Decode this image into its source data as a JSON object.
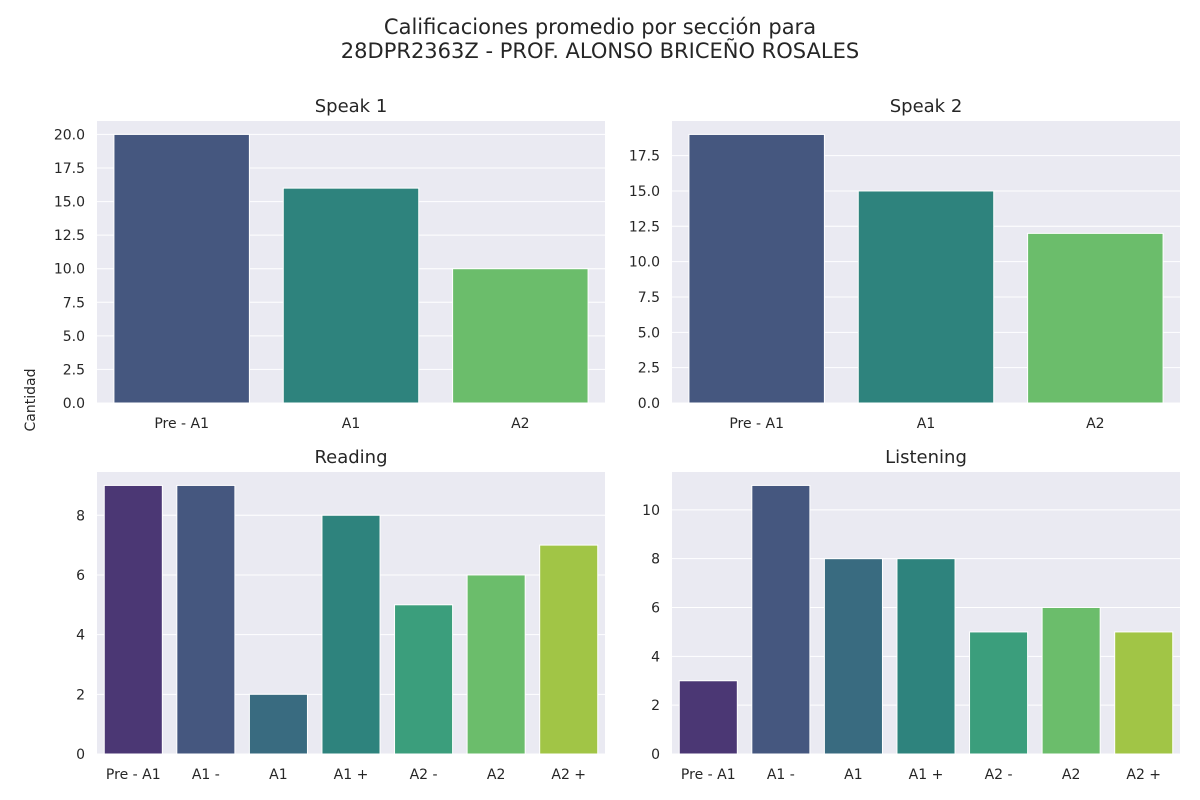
{
  "figure": {
    "title_line1": "Calificaciones promedio por sección para",
    "title_line2": "28DPR2363Z - PROF. ALONSO BRICEÑO ROSALES",
    "ylabel": "Cantidad",
    "background": "#ffffff",
    "axes_background": "#eaeaf2",
    "grid_color": "#ffffff"
  },
  "chart_data": [
    {
      "type": "bar",
      "title": "Speak 1",
      "categories": [
        "Pre - A1",
        "A1",
        "A2"
      ],
      "values": [
        20,
        16,
        10
      ],
      "colors": [
        "#45577f",
        "#2e837d",
        "#6bbd6b"
      ],
      "ylim": [
        0,
        21
      ],
      "yticks": [
        0,
        2.5,
        5,
        7.5,
        10,
        12.5,
        15,
        17.5,
        20
      ],
      "ytick_labels": [
        "0.0",
        "2.5",
        "5.0",
        "7.5",
        "10.0",
        "12.5",
        "15.0",
        "17.5",
        "20.0"
      ],
      "grid": true
    },
    {
      "type": "bar",
      "title": "Speak 2",
      "categories": [
        "Pre - A1",
        "A1",
        "A2"
      ],
      "values": [
        19,
        15,
        12
      ],
      "colors": [
        "#45577f",
        "#2e837d",
        "#6bbd6b"
      ],
      "ylim": [
        0,
        19.95
      ],
      "yticks": [
        0,
        2.5,
        5,
        7.5,
        10,
        12.5,
        15,
        17.5
      ],
      "ytick_labels": [
        "0.0",
        "2.5",
        "5.0",
        "7.5",
        "10.0",
        "12.5",
        "15.0",
        "17.5"
      ],
      "grid": true
    },
    {
      "type": "bar",
      "title": "Reading",
      "categories": [
        "Pre - A1",
        "A1 -",
        "A1",
        "A1 +",
        "A2 -",
        "A2",
        "A2 +"
      ],
      "values": [
        9,
        9,
        2,
        8,
        5,
        6,
        7
      ],
      "colors": [
        "#4b3774",
        "#45577f",
        "#396b80",
        "#2e837d",
        "#3b9e7c",
        "#6bbd6b",
        "#a1c546"
      ],
      "ylim": [
        0,
        9.45
      ],
      "yticks": [
        0,
        2,
        4,
        6,
        8
      ],
      "ytick_labels": [
        "0",
        "2",
        "4",
        "6",
        "8"
      ],
      "grid": true
    },
    {
      "type": "bar",
      "title": "Listening",
      "categories": [
        "Pre - A1",
        "A1 -",
        "A1",
        "A1 +",
        "A2 -",
        "A2",
        "A2 +"
      ],
      "values": [
        3,
        11,
        8,
        8,
        5,
        6,
        5
      ],
      "colors": [
        "#4b3774",
        "#45577f",
        "#396b80",
        "#2e837d",
        "#3b9e7c",
        "#6bbd6b",
        "#a1c546"
      ],
      "ylim": [
        0,
        11.55
      ],
      "yticks": [
        0,
        2,
        4,
        6,
        8,
        10
      ],
      "ytick_labels": [
        "0",
        "2",
        "4",
        "6",
        "8",
        "10"
      ],
      "grid": true
    }
  ]
}
